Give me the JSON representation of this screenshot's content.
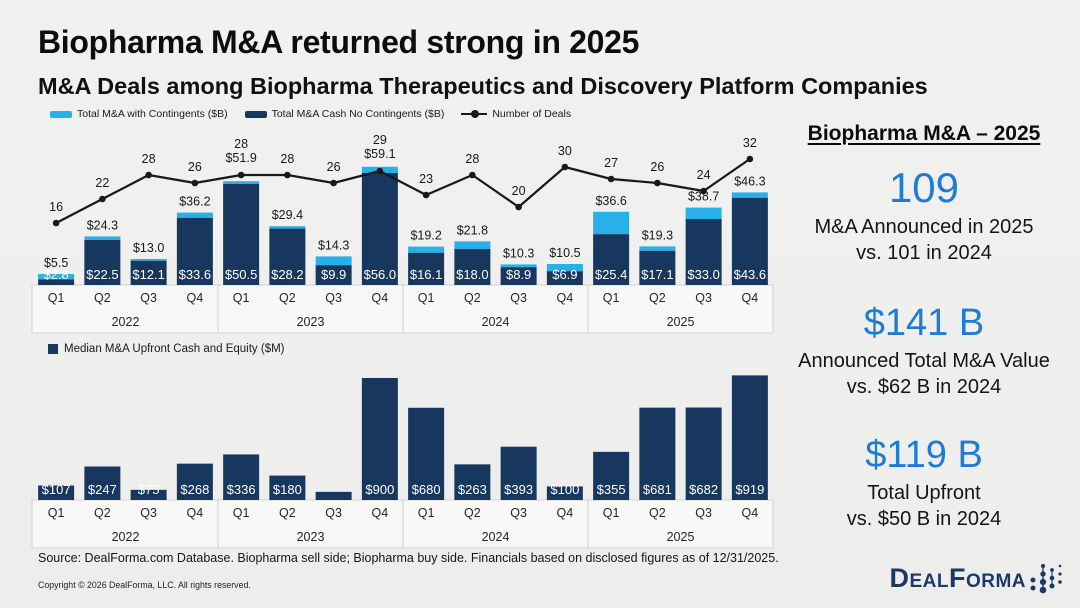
{
  "slide": {
    "title": "Biopharma M&A returned strong in 2025",
    "subtitle": "M&A Deals among Biopharma Therapeutics and Discovery Platform Companies",
    "source": "Source: DealForma.com Database. Biopharma sell side; Biopharma buy side. Financials based on disclosed figures as of 12/31/2025.",
    "copyright": "Copyright © 2026 DealForma, LLC. All rights reserved.",
    "logo_text": "DealForma"
  },
  "colors": {
    "navy": "#17375E",
    "light_blue": "#2AB0E8",
    "deals_line": "#17191E",
    "accent_blue": "#1F7CD6",
    "background": "#EFEFED"
  },
  "sidebar": {
    "heading": "Biopharma M&A – 2025",
    "stats": [
      {
        "value": "109",
        "line1": "M&A Announced in 2025",
        "line2": "vs. 101 in 2024"
      },
      {
        "value": "$141 B",
        "line1": "Announced Total M&A Value",
        "line2": "vs. $62 B in 2024"
      },
      {
        "value": "$119 B",
        "line1": "Total Upfront",
        "line2": "vs. $50 B in 2024"
      }
    ]
  },
  "chart_data": [
    {
      "type": "bar+line",
      "quarters": [
        "Q1",
        "Q2",
        "Q3",
        "Q4",
        "Q1",
        "Q2",
        "Q3",
        "Q4",
        "Q1",
        "Q2",
        "Q3",
        "Q4",
        "Q1",
        "Q2",
        "Q3",
        "Q4"
      ],
      "years": [
        "2022",
        "2023",
        "2024",
        "2025"
      ],
      "ylim": [
        0,
        65
      ],
      "deals_ylim": [
        0,
        36
      ],
      "legend_position": "top-left",
      "series": [
        {
          "name": "Total M&A with Contingents ($B)",
          "color": "#2AB0E8",
          "values": [
            5.5,
            24.3,
            13.0,
            36.2,
            51.9,
            29.4,
            14.3,
            59.1,
            19.2,
            21.8,
            10.3,
            10.5,
            36.6,
            19.3,
            38.7,
            46.3
          ]
        },
        {
          "name": "Total M&A Cash No Contingents ($B)",
          "color": "#17375E",
          "values": [
            2.8,
            22.5,
            12.1,
            33.6,
            50.5,
            28.2,
            9.9,
            56.0,
            16.1,
            18.0,
            8.9,
            6.9,
            25.4,
            17.1,
            33.0,
            43.6
          ]
        },
        {
          "name": "Number of Deals",
          "color": "#17191E",
          "values": [
            16,
            22,
            28,
            26,
            28,
            28,
            26,
            29,
            23,
            28,
            20,
            30,
            27,
            26,
            24,
            32
          ]
        }
      ]
    },
    {
      "type": "bar",
      "name": "Median M&A Upfront Cash and Equity ($M)",
      "color": "#17375E",
      "quarters": [
        "Q1",
        "Q2",
        "Q3",
        "Q4",
        "Q1",
        "Q2",
        "Q3",
        "Q4",
        "Q1",
        "Q2",
        "Q3",
        "Q4",
        "Q1",
        "Q2",
        "Q3",
        "Q4"
      ],
      "years": [
        "2022",
        "2023",
        "2024",
        "2025"
      ],
      "ylim": [
        0,
        1000
      ],
      "values": [
        107,
        247,
        75,
        268,
        336,
        180,
        60,
        900,
        680,
        263,
        393,
        100,
        355,
        681,
        682,
        919
      ],
      "labels": [
        "$107",
        "$247",
        "$75",
        "$268",
        "$336",
        "$180",
        "",
        "$900",
        "$680",
        "$263",
        "$393",
        "$100",
        "$355",
        "$681",
        "$682",
        "$919"
      ]
    }
  ]
}
